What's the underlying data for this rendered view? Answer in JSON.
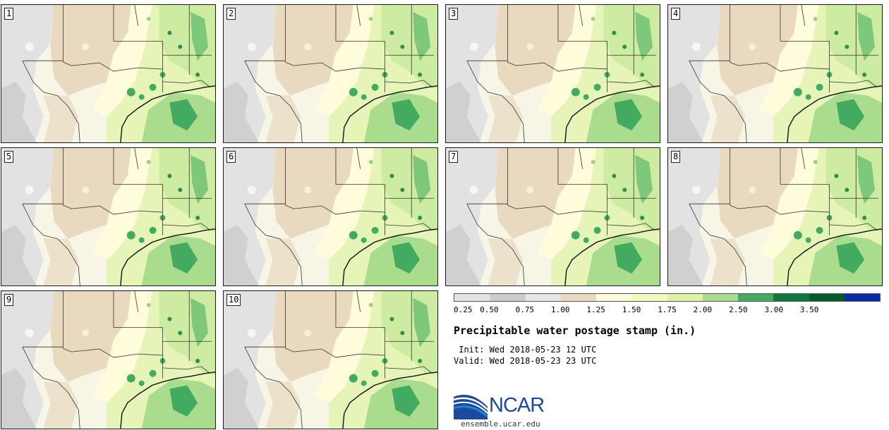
{
  "panels": [
    {
      "label": "1"
    },
    {
      "label": "2"
    },
    {
      "label": "3"
    },
    {
      "label": "4"
    },
    {
      "label": "5"
    },
    {
      "label": "6"
    },
    {
      "label": "7"
    },
    {
      "label": "8"
    },
    {
      "label": "9"
    },
    {
      "label": "10"
    }
  ],
  "legend": {
    "colors": [
      "#e3e3e3",
      "#cccccc",
      "#e6e6e6",
      "#e8d9bf",
      "#fffdd9",
      "#f4fbc0",
      "#dcf3a3",
      "#a9dd8d",
      "#43ab5f",
      "#0b7a3b",
      "#045a2a",
      "#0b2aaa"
    ],
    "ticks": [
      "0.25",
      "0.50",
      "0.75",
      "1.00",
      "1.25",
      "1.50",
      "1.75",
      "2.00",
      "2.50",
      "3.00",
      "3.50"
    ]
  },
  "title": "Precipitable water postage stamp (in.)",
  "init": " Init: Wed 2018-05-23 12 UTC",
  "valid": "Valid: Wed 2018-05-23 23 UTC",
  "logo": {
    "text": "NCAR",
    "site": "ensemble.ucar.edu",
    "brand_color": "#1a4aa0",
    "accent_color": "#1e88c8"
  }
}
